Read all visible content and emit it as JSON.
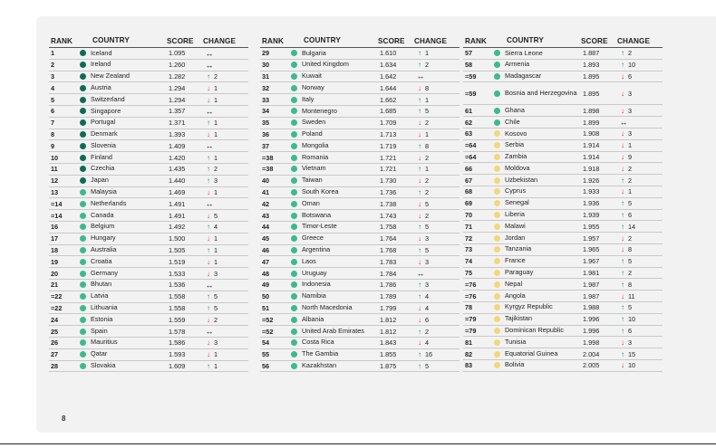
{
  "headers": {
    "rank": "RANK",
    "country": "COUNTRY",
    "score": "SCORE",
    "change": "CHANGE"
  },
  "page_number": "8",
  "colors": {
    "very_high": "#0f6b57",
    "high": "#3dba8c",
    "medium": "#f5d77a",
    "up": "#1f8a68",
    "down": "#d7373a"
  },
  "tables": [
    [
      {
        "rank": "1",
        "country": "Iceland",
        "score": "1.095",
        "dir": "same",
        "change": "",
        "level": "very_high"
      },
      {
        "rank": "2",
        "country": "Ireland",
        "score": "1.260",
        "dir": "same",
        "change": "",
        "level": "very_high"
      },
      {
        "rank": "3",
        "country": "New Zealand",
        "score": "1.282",
        "dir": "up",
        "change": "2",
        "level": "very_high"
      },
      {
        "rank": "4",
        "country": "Austria",
        "score": "1.294",
        "dir": "down",
        "change": "1",
        "level": "very_high"
      },
      {
        "rank": "5",
        "country": "Switzerland",
        "score": "1.294",
        "dir": "down",
        "change": "1",
        "level": "very_high"
      },
      {
        "rank": "6",
        "country": "Singapore",
        "score": "1.357",
        "dir": "same",
        "change": "",
        "level": "very_high"
      },
      {
        "rank": "7",
        "country": "Portugal",
        "score": "1.371",
        "dir": "up",
        "change": "1",
        "level": "very_high"
      },
      {
        "rank": "8",
        "country": "Denmark",
        "score": "1.393",
        "dir": "down",
        "change": "1",
        "level": "very_high"
      },
      {
        "rank": "9",
        "country": "Slovenia",
        "score": "1.409",
        "dir": "same",
        "change": "",
        "level": "very_high"
      },
      {
        "rank": "10",
        "country": "Finland",
        "score": "1.420",
        "dir": "up",
        "change": "1",
        "level": "very_high"
      },
      {
        "rank": "11",
        "country": "Czechia",
        "score": "1.435",
        "dir": "up",
        "change": "2",
        "level": "very_high"
      },
      {
        "rank": "12",
        "country": "Japan",
        "score": "1.440",
        "dir": "up",
        "change": "3",
        "level": "very_high"
      },
      {
        "rank": "13",
        "country": "Malaysia",
        "score": "1.469",
        "dir": "down",
        "change": "1",
        "level": "high"
      },
      {
        "rank": "=14",
        "country": "Netherlands",
        "score": "1.491",
        "dir": "same",
        "change": "",
        "level": "high"
      },
      {
        "rank": "=14",
        "country": "Canada",
        "score": "1.491",
        "dir": "down",
        "change": "5",
        "level": "high"
      },
      {
        "rank": "16",
        "country": "Belgium",
        "score": "1.492",
        "dir": "up",
        "change": "4",
        "level": "high"
      },
      {
        "rank": "17",
        "country": "Hungary",
        "score": "1.500",
        "dir": "down",
        "change": "1",
        "level": "high"
      },
      {
        "rank": "18",
        "country": "Australia",
        "score": "1.505",
        "dir": "up",
        "change": "1",
        "level": "high"
      },
      {
        "rank": "19",
        "country": "Croatia",
        "score": "1.519",
        "dir": "down",
        "change": "1",
        "level": "high"
      },
      {
        "rank": "20",
        "country": "Germany",
        "score": "1.533",
        "dir": "down",
        "change": "3",
        "level": "high"
      },
      {
        "rank": "21",
        "country": "Bhutan",
        "score": "1.536",
        "dir": "same",
        "change": "",
        "level": "high"
      },
      {
        "rank": "=22",
        "country": "Latvia",
        "score": "1.558",
        "dir": "up",
        "change": "5",
        "level": "high"
      },
      {
        "rank": "=22",
        "country": "Lithuania",
        "score": "1.558",
        "dir": "up",
        "change": "5",
        "level": "high"
      },
      {
        "rank": "24",
        "country": "Estonia",
        "score": "1.559",
        "dir": "down",
        "change": "2",
        "level": "high"
      },
      {
        "rank": "25",
        "country": "Spain",
        "score": "1.578",
        "dir": "same",
        "change": "",
        "level": "high"
      },
      {
        "rank": "26",
        "country": "Mauritius",
        "score": "1.586",
        "dir": "down",
        "change": "3",
        "level": "high"
      },
      {
        "rank": "27",
        "country": "Qatar",
        "score": "1.593",
        "dir": "down",
        "change": "1",
        "level": "high"
      },
      {
        "rank": "28",
        "country": "Slovakia",
        "score": "1.609",
        "dir": "up",
        "change": "1",
        "level": "high"
      }
    ],
    [
      {
        "rank": "29",
        "country": "Bulgaria",
        "score": "1.610",
        "dir": "up",
        "change": "1",
        "level": "high"
      },
      {
        "rank": "30",
        "country": "United Kingdom",
        "score": "1.634",
        "dir": "up",
        "change": "2",
        "level": "high"
      },
      {
        "rank": "31",
        "country": "Kuwait",
        "score": "1.642",
        "dir": "same",
        "change": "",
        "level": "high"
      },
      {
        "rank": "32",
        "country": "Norway",
        "score": "1.644",
        "dir": "down",
        "change": "8",
        "level": "high"
      },
      {
        "rank": "33",
        "country": "Italy",
        "score": "1.662",
        "dir": "up",
        "change": "1",
        "level": "high"
      },
      {
        "rank": "34",
        "country": "Montenegro",
        "score": "1.685",
        "dir": "up",
        "change": "5",
        "level": "high"
      },
      {
        "rank": "35",
        "country": "Sweden",
        "score": "1.709",
        "dir": "down",
        "change": "2",
        "level": "high"
      },
      {
        "rank": "36",
        "country": "Poland",
        "score": "1.713",
        "dir": "down",
        "change": "1",
        "level": "high"
      },
      {
        "rank": "37",
        "country": "Mongolia",
        "score": "1.719",
        "dir": "up",
        "change": "8",
        "level": "high"
      },
      {
        "rank": "=38",
        "country": "Romania",
        "score": "1.721",
        "dir": "down",
        "change": "2",
        "level": "high"
      },
      {
        "rank": "=38",
        "country": "Vietnam",
        "score": "1.721",
        "dir": "up",
        "change": "1",
        "level": "high"
      },
      {
        "rank": "40",
        "country": "Taiwan",
        "score": "1.730",
        "dir": "down",
        "change": "2",
        "level": "high"
      },
      {
        "rank": "41",
        "country": "South Korea",
        "score": "1.736",
        "dir": "up",
        "change": "2",
        "level": "high"
      },
      {
        "rank": "42",
        "country": "Oman",
        "score": "1.738",
        "dir": "down",
        "change": "5",
        "level": "high"
      },
      {
        "rank": "43",
        "country": "Botswana",
        "score": "1.743",
        "dir": "down",
        "change": "2",
        "level": "high"
      },
      {
        "rank": "44",
        "country": "Timor-Leste",
        "score": "1.758",
        "dir": "up",
        "change": "5",
        "level": "high"
      },
      {
        "rank": "45",
        "country": "Greece",
        "score": "1.764",
        "dir": "down",
        "change": "3",
        "level": "high"
      },
      {
        "rank": "46",
        "country": "Argentina",
        "score": "1.768",
        "dir": "up",
        "change": "5",
        "level": "high"
      },
      {
        "rank": "47",
        "country": "Laos",
        "score": "1.783",
        "dir": "down",
        "change": "3",
        "level": "high"
      },
      {
        "rank": "48",
        "country": "Uruguay",
        "score": "1.784",
        "dir": "same",
        "change": "",
        "level": "high"
      },
      {
        "rank": "49",
        "country": "Indonesia",
        "score": "1.786",
        "dir": "up",
        "change": "3",
        "level": "high"
      },
      {
        "rank": "50",
        "country": "Namibia",
        "score": "1.789",
        "dir": "up",
        "change": "4",
        "level": "high"
      },
      {
        "rank": "51",
        "country": "North Macedonia",
        "score": "1.799",
        "dir": "down",
        "change": "4",
        "level": "high"
      },
      {
        "rank": "=52",
        "country": "Albania",
        "score": "1.812",
        "dir": "down",
        "change": "6",
        "level": "high"
      },
      {
        "rank": "=52",
        "country": "United Arab Emirates",
        "score": "1.812",
        "dir": "up",
        "change": "2",
        "level": "high"
      },
      {
        "rank": "54",
        "country": "Costa Rica",
        "score": "1.843",
        "dir": "down",
        "change": "4",
        "level": "high"
      },
      {
        "rank": "55",
        "country": "The Gambia",
        "score": "1.855",
        "dir": "up",
        "change": "16",
        "level": "high"
      },
      {
        "rank": "56",
        "country": "Kazakhstan",
        "score": "1.875",
        "dir": "up",
        "change": "5",
        "level": "high"
      }
    ],
    [
      {
        "rank": "57",
        "country": "Sierra Leone",
        "score": "1.887",
        "dir": "up",
        "change": "2",
        "level": "high"
      },
      {
        "rank": "58",
        "country": "Armenia",
        "score": "1.893",
        "dir": "up",
        "change": "10",
        "level": "high"
      },
      {
        "rank": "=59",
        "country": "Madagascar",
        "score": "1.895",
        "dir": "down",
        "change": "6",
        "level": "high"
      },
      {
        "rank": "=59",
        "country": "Bosnia and Herzegovina",
        "score": "1.895",
        "dir": "down",
        "change": "3",
        "level": "high",
        "tall": true
      },
      {
        "rank": "61",
        "country": "Ghana",
        "score": "1.898",
        "dir": "down",
        "change": "3",
        "level": "high"
      },
      {
        "rank": "62",
        "country": "Chile",
        "score": "1.899",
        "dir": "same",
        "change": "",
        "level": "high"
      },
      {
        "rank": "63",
        "country": "Kosovo",
        "score": "1.908",
        "dir": "down",
        "change": "3",
        "level": "medium"
      },
      {
        "rank": "=64",
        "country": "Serbia",
        "score": "1.914",
        "dir": "down",
        "change": "1",
        "level": "medium"
      },
      {
        "rank": "=64",
        "country": "Zambia",
        "score": "1.914",
        "dir": "down",
        "change": "9",
        "level": "medium"
      },
      {
        "rank": "66",
        "country": "Moldova",
        "score": "1.918",
        "dir": "down",
        "change": "2",
        "level": "medium"
      },
      {
        "rank": "67",
        "country": "Uzbekistan",
        "score": "1.926",
        "dir": "up",
        "change": "2",
        "level": "medium"
      },
      {
        "rank": "68",
        "country": "Cyprus",
        "score": "1.933",
        "dir": "down",
        "change": "1",
        "level": "medium"
      },
      {
        "rank": "69",
        "country": "Senegal",
        "score": "1.936",
        "dir": "up",
        "change": "5",
        "level": "medium"
      },
      {
        "rank": "70",
        "country": "Liberia",
        "score": "1.939",
        "dir": "up",
        "change": "6",
        "level": "medium"
      },
      {
        "rank": "71",
        "country": "Malawi",
        "score": "1.955",
        "dir": "up",
        "change": "14",
        "level": "medium"
      },
      {
        "rank": "72",
        "country": "Jordan",
        "score": "1.957",
        "dir": "down",
        "change": "2",
        "level": "medium"
      },
      {
        "rank": "73",
        "country": "Tanzania",
        "score": "1.965",
        "dir": "down",
        "change": "8",
        "level": "medium"
      },
      {
        "rank": "74",
        "country": "France",
        "score": "1.967",
        "dir": "up",
        "change": "5",
        "level": "medium"
      },
      {
        "rank": "75",
        "country": "Paraguay",
        "score": "1.981",
        "dir": "up",
        "change": "2",
        "level": "medium"
      },
      {
        "rank": "=76",
        "country": "Nepal",
        "score": "1.987",
        "dir": "up",
        "change": "8",
        "level": "medium"
      },
      {
        "rank": "=76",
        "country": "Angola",
        "score": "1.987",
        "dir": "down",
        "change": "11",
        "level": "medium"
      },
      {
        "rank": "78",
        "country": "Kyrgyz Republic",
        "score": "1.988",
        "dir": "up",
        "change": "5",
        "level": "medium"
      },
      {
        "rank": "=79",
        "country": "Tajikistan",
        "score": "1.996",
        "dir": "up",
        "change": "10",
        "level": "medium"
      },
      {
        "rank": "=79",
        "country": "Dominican Republic",
        "score": "1.996",
        "dir": "up",
        "change": "6",
        "level": "medium"
      },
      {
        "rank": "81",
        "country": "Tunisia",
        "score": "1.998",
        "dir": "down",
        "change": "3",
        "level": "medium"
      },
      {
        "rank": "82",
        "country": "Equatorial Guinea",
        "score": "2.004",
        "dir": "up",
        "change": "15",
        "level": "medium"
      },
      {
        "rank": "83",
        "country": "Bolivia",
        "score": "2.005",
        "dir": "down",
        "change": "10",
        "level": "medium"
      }
    ]
  ]
}
